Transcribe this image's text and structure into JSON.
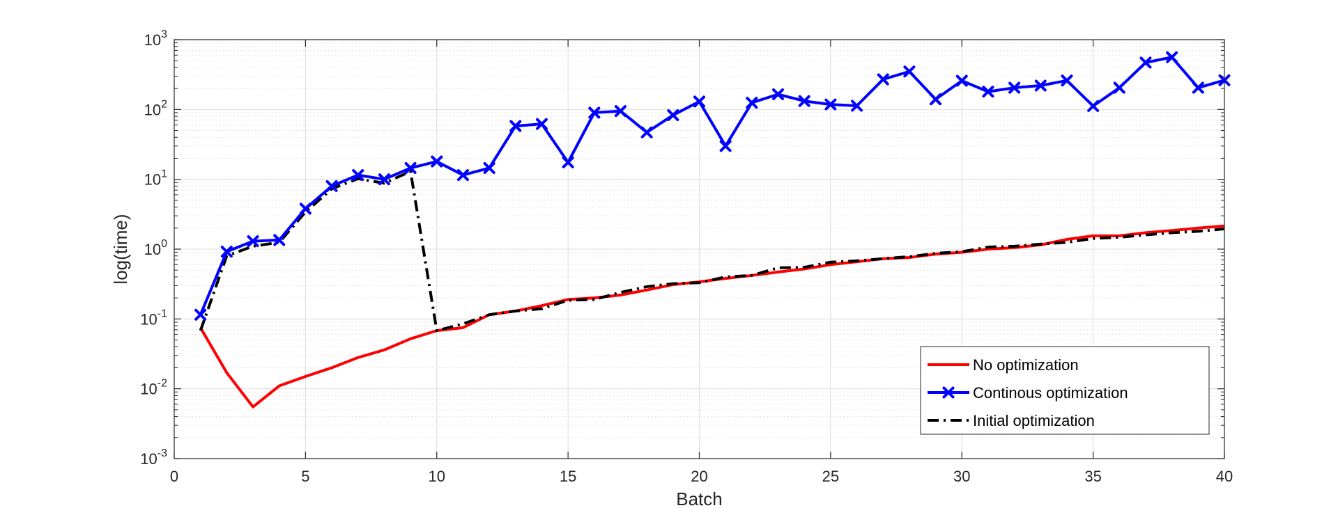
{
  "chart_data": {
    "type": "line",
    "xlabel": "Batch",
    "ylabel": "log(time)",
    "xlim": [
      0,
      40
    ],
    "ylim": [
      0.001,
      1000
    ],
    "yscale": "log",
    "grid": true,
    "legend_position": "bottom-right",
    "x_ticks": [
      0,
      5,
      10,
      15,
      20,
      25,
      30,
      35,
      40
    ],
    "y_ticks": [
      {
        "value": 0.001,
        "base": "10",
        "exp": "-3"
      },
      {
        "value": 0.01,
        "base": "10",
        "exp": "-2"
      },
      {
        "value": 0.1,
        "base": "10",
        "exp": "-1"
      },
      {
        "value": 1,
        "base": "10",
        "exp": "0"
      },
      {
        "value": 10,
        "base": "10",
        "exp": "1"
      },
      {
        "value": 100,
        "base": "10",
        "exp": "2"
      },
      {
        "value": 1000,
        "base": "10",
        "exp": "3"
      }
    ],
    "series": [
      {
        "name": "No optimization",
        "color": "#ff0000",
        "line_style": "solid",
        "marker": "none",
        "x": [
          1,
          2,
          3,
          4,
          5,
          6,
          7,
          8,
          9,
          10,
          11,
          12,
          13,
          14,
          15,
          16,
          17,
          18,
          19,
          20,
          21,
          22,
          23,
          24,
          25,
          26,
          27,
          28,
          29,
          30,
          31,
          32,
          33,
          34,
          35,
          36,
          37,
          38,
          39,
          40
        ],
        "y": [
          0.075,
          0.017,
          0.0055,
          0.011,
          0.015,
          0.02,
          0.028,
          0.036,
          0.052,
          0.068,
          0.075,
          0.115,
          0.13,
          0.155,
          0.19,
          0.2,
          0.22,
          0.26,
          0.31,
          0.34,
          0.38,
          0.42,
          0.47,
          0.52,
          0.6,
          0.66,
          0.73,
          0.76,
          0.85,
          0.9,
          1.0,
          1.05,
          1.15,
          1.38,
          1.55,
          1.55,
          1.72,
          1.85,
          2.0,
          2.15
        ]
      },
      {
        "name": "Continous optimization",
        "color": "#0000ff",
        "line_style": "solid",
        "marker": "x",
        "x": [
          1,
          2,
          3,
          4,
          5,
          6,
          7,
          8,
          9,
          10,
          11,
          12,
          13,
          14,
          15,
          16,
          17,
          18,
          19,
          20,
          21,
          22,
          23,
          24,
          25,
          26,
          27,
          28,
          29,
          30,
          31,
          32,
          33,
          34,
          35,
          36,
          37,
          38,
          39,
          40
        ],
        "y": [
          0.115,
          0.92,
          1.3,
          1.35,
          3.8,
          8.0,
          11.5,
          10.0,
          14.5,
          18.0,
          11.5,
          14.5,
          58,
          62,
          17.5,
          90,
          95,
          47,
          83,
          130,
          30,
          125,
          165,
          132,
          118,
          113,
          270,
          350,
          140,
          258,
          180,
          205,
          220,
          260,
          112,
          205,
          470,
          560,
          205,
          262
        ]
      },
      {
        "name": "Initial optimization",
        "color": "#000000",
        "line_style": "dashdot",
        "marker": "none",
        "x": [
          1,
          2,
          3,
          4,
          5,
          6,
          7,
          8,
          9,
          10,
          11,
          12,
          13,
          14,
          15,
          16,
          17,
          18,
          19,
          20,
          21,
          22,
          23,
          24,
          25,
          26,
          27,
          28,
          29,
          30,
          31,
          32,
          33,
          34,
          35,
          36,
          37,
          38,
          39,
          40
        ],
        "y": [
          0.068,
          0.8,
          1.1,
          1.25,
          3.4,
          7.3,
          10.2,
          8.8,
          13.0,
          0.068,
          0.085,
          0.115,
          0.13,
          0.14,
          0.185,
          0.19,
          0.24,
          0.29,
          0.32,
          0.33,
          0.4,
          0.42,
          0.54,
          0.55,
          0.65,
          0.68,
          0.73,
          0.78,
          0.87,
          0.92,
          1.07,
          1.1,
          1.18,
          1.25,
          1.42,
          1.48,
          1.6,
          1.72,
          1.8,
          1.95
        ]
      }
    ]
  }
}
